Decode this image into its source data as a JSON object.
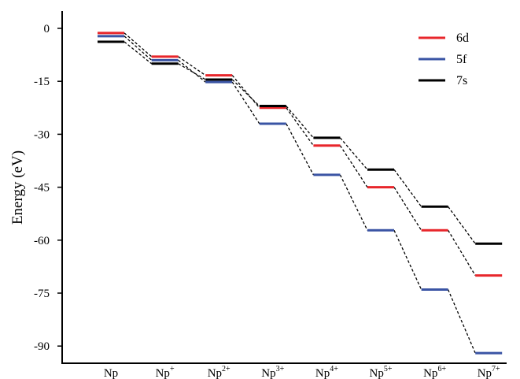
{
  "chart_data": {
    "type": "line",
    "ylabel": "Energy (eV)",
    "ylim": [
      -96,
      6
    ],
    "yticks": [
      0,
      -15,
      -30,
      -45,
      -60,
      -75,
      -90
    ],
    "categories": [
      {
        "base": "Np",
        "sup": ""
      },
      {
        "base": "Np",
        "sup": "+"
      },
      {
        "base": "Np",
        "sup": "2+"
      },
      {
        "base": "Np",
        "sup": "3+"
      },
      {
        "base": "Np",
        "sup": "4+"
      },
      {
        "base": "Np",
        "sup": "5+"
      },
      {
        "base": "Np",
        "sup": "6+"
      },
      {
        "base": "Np",
        "sup": "7+"
      }
    ],
    "series": [
      {
        "name": "6d",
        "color": "#e8262b",
        "values": [
          -1.3,
          -8.0,
          -13.3,
          -22.5,
          -33.2,
          -45.0,
          -57.2,
          -70.0
        ]
      },
      {
        "name": "5f",
        "color": "#3a54a4",
        "values": [
          -2.2,
          -9.0,
          -15.2,
          -27.0,
          -41.5,
          -57.2,
          -74.0,
          -92.0
        ]
      },
      {
        "name": "7s",
        "color": "#000000",
        "values": [
          -3.8,
          -10.0,
          -14.5,
          -22.0,
          -31.0,
          -40.0,
          -50.5,
          -61.0
        ]
      }
    ],
    "grid": false,
    "legend_position": "top-right"
  }
}
